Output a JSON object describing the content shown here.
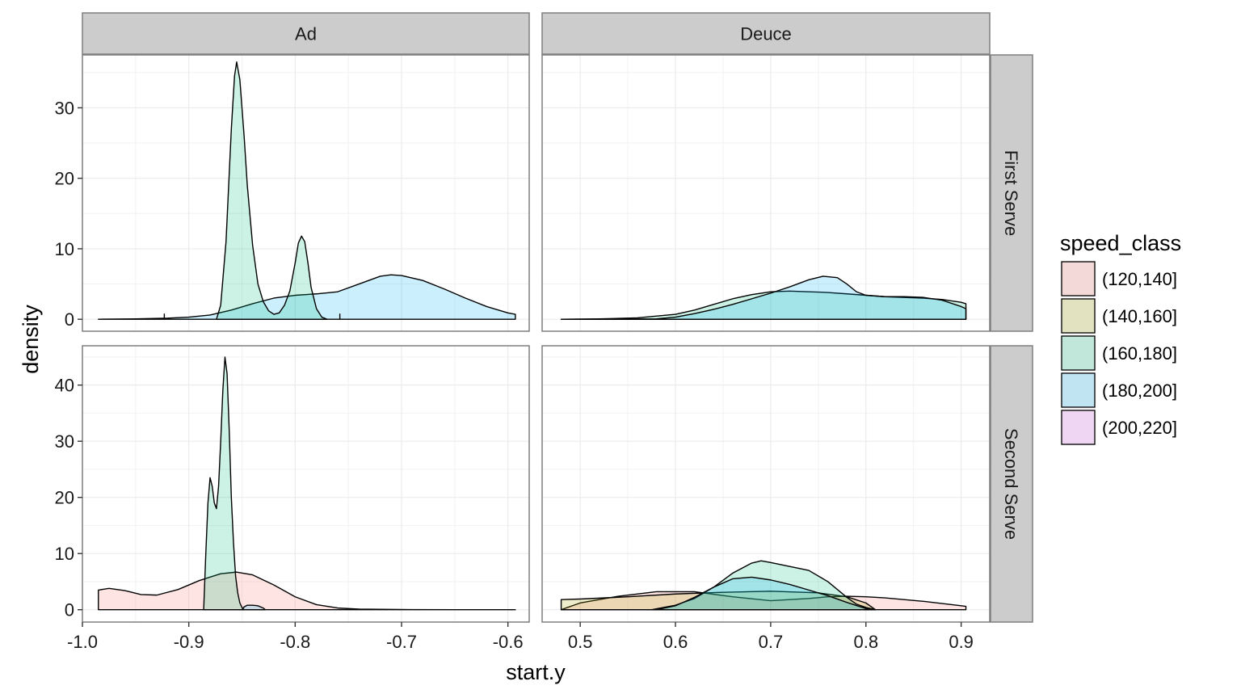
{
  "chart_data": {
    "type": "area",
    "chart_kind": "faceted density plot",
    "xlabel": "start.y",
    "ylabel": "density",
    "colors": {
      "(120,140]": "#F8766D",
      "(140,160]": "#A3A500",
      "(160,180]": "#00BF7D",
      "(180,200]": "#00B0F6",
      "(200,220]": "#E76BF3"
    },
    "fill_alpha": 0.2,
    "grid": true,
    "legend": {
      "title": "speed_class",
      "position": "right",
      "entries": [
        "(120,140]",
        "(140,160]",
        "(160,180]",
        "(180,200]",
        "(200,220]"
      ]
    },
    "col_facets": [
      "Ad",
      "Deuce"
    ],
    "row_facets": [
      "First Serve",
      "Second Serve"
    ],
    "x_scales": {
      "Ad": {
        "xlim": [
          -1.0,
          -0.58
        ],
        "ticks": [
          -1.0,
          -0.9,
          -0.8,
          -0.7,
          -0.6
        ],
        "tick_labels": [
          "-1.0",
          "-0.9",
          "-0.8",
          "-0.7",
          "-0.6"
        ]
      },
      "Deuce": {
        "xlim": [
          0.46,
          0.93
        ],
        "ticks": [
          0.5,
          0.6,
          0.7,
          0.8,
          0.9
        ],
        "tick_labels": [
          "0.5",
          "0.6",
          "0.7",
          "0.8",
          "0.9"
        ]
      }
    },
    "y_scales": {
      "First Serve": {
        "ylim": [
          -1.7,
          37.5
        ],
        "ticks": [
          0,
          10,
          20,
          30
        ],
        "tick_labels": [
          "0",
          "10",
          "20",
          "30"
        ]
      },
      "Second Serve": {
        "ylim": [
          -2.2,
          47
        ],
        "ticks": [
          0,
          10,
          20,
          30,
          40
        ],
        "tick_labels": [
          "0",
          "10",
          "20",
          "30",
          "40"
        ]
      }
    },
    "panels": [
      {
        "row": "First Serve",
        "col": "Ad",
        "series": [
          {
            "name": "(180,200]",
            "x": [
              -0.985,
              -0.95,
              -0.92,
              -0.9,
              -0.88,
              -0.86,
              -0.84,
              -0.82,
              -0.8,
              -0.78,
              -0.76,
              -0.74,
              -0.72,
              -0.71,
              -0.7,
              -0.68,
              -0.66,
              -0.64,
              -0.62,
              -0.6,
              -0.593
            ],
            "y": [
              0,
              0.05,
              0.15,
              0.3,
              0.6,
              1.3,
              2.2,
              3.0,
              3.4,
              3.6,
              3.9,
              5.0,
              6.1,
              6.3,
              6.2,
              5.5,
              4.3,
              3.0,
              1.8,
              0.9,
              0.7
            ]
          },
          {
            "name": "(160,180]",
            "x": [
              -0.874,
              -0.87,
              -0.865,
              -0.86,
              -0.857,
              -0.855,
              -0.852,
              -0.848,
              -0.845,
              -0.84,
              -0.835,
              -0.83,
              -0.825,
              -0.82,
              -0.815,
              -0.81,
              -0.805,
              -0.8,
              -0.797,
              -0.794,
              -0.791,
              -0.788,
              -0.785,
              -0.78,
              -0.775,
              -0.77
            ],
            "y": [
              0,
              2.0,
              11.0,
              27.0,
              34.5,
              36.5,
              34.0,
              26.0,
              19.0,
              10.5,
              5.0,
              2.5,
              1.2,
              0.7,
              0.9,
              2.0,
              4.0,
              8.0,
              10.8,
              11.8,
              11.0,
              8.0,
              4.5,
              1.5,
              0.3,
              0
            ]
          },
          {
            "name": "(160,180]",
            "x": [
              -0.923,
              -0.923
            ],
            "y": [
              0,
              0.8
            ]
          },
          {
            "name": "(160,180]",
            "x": [
              -0.758,
              -0.758
            ],
            "y": [
              0,
              0.8
            ]
          }
        ]
      },
      {
        "row": "First Serve",
        "col": "Deuce",
        "series": [
          {
            "name": "(160,180]",
            "x": [
              0.48,
              0.52,
              0.56,
              0.6,
              0.62,
              0.64,
              0.66,
              0.68,
              0.7,
              0.72,
              0.74,
              0.76,
              0.78,
              0.8,
              0.82,
              0.84,
              0.86,
              0.88,
              0.9,
              0.905
            ],
            "y": [
              0,
              0.05,
              0.2,
              0.7,
              1.3,
              2.1,
              2.9,
              3.5,
              3.9,
              4.0,
              3.9,
              3.8,
              3.6,
              3.4,
              3.2,
              3.1,
              3.0,
              2.8,
              2.4,
              2.2
            ]
          },
          {
            "name": "(180,200]",
            "x": [
              0.48,
              0.58,
              0.6,
              0.62,
              0.64,
              0.66,
              0.68,
              0.7,
              0.72,
              0.74,
              0.755,
              0.77,
              0.78,
              0.79,
              0.8,
              0.82,
              0.84,
              0.86,
              0.88,
              0.9,
              0.905
            ],
            "y": [
              0,
              0.05,
              0.3,
              0.8,
              1.4,
              2.1,
              2.9,
              3.7,
              4.6,
              5.6,
              6.1,
              5.9,
              5.0,
              3.9,
              3.4,
              3.2,
              3.2,
              3.1,
              2.7,
              1.8,
              1.5
            ]
          }
        ]
      },
      {
        "row": "Second Serve",
        "col": "Ad",
        "series": [
          {
            "name": "(120,140]",
            "x": [
              -0.985,
              -0.985,
              -0.975,
              -0.96,
              -0.945,
              -0.93,
              -0.91,
              -0.89,
              -0.87,
              -0.855,
              -0.84,
              -0.82,
              -0.8,
              -0.78,
              -0.76,
              -0.74,
              -0.7,
              -0.65,
              -0.593
            ],
            "y": [
              0,
              3.5,
              3.8,
              3.4,
              2.7,
              2.6,
              3.6,
              5.2,
              6.4,
              6.7,
              6.2,
              4.4,
              2.3,
              0.9,
              0.3,
              0.1,
              0.03,
              0.01,
              0
            ]
          },
          {
            "name": "(160,180]",
            "x": [
              -0.886,
              -0.884,
              -0.882,
              -0.88,
              -0.878,
              -0.876,
              -0.874,
              -0.872,
              -0.87,
              -0.868,
              -0.866,
              -0.864,
              -0.862,
              -0.86,
              -0.858,
              -0.856,
              -0.854,
              -0.852,
              -0.85,
              -0.848
            ],
            "y": [
              0,
              10,
              19,
              23.5,
              22,
              19,
              18,
              22,
              30,
              39,
              45,
              42,
              32,
              20,
              12,
              6,
              3,
              1.2,
              0.4,
              0
            ]
          },
          {
            "name": "(180,200]",
            "x": [
              -0.85,
              -0.848,
              -0.845,
              -0.84,
              -0.835,
              -0.83,
              -0.828
            ],
            "y": [
              0,
              0.5,
              0.8,
              0.8,
              0.7,
              0.3,
              0
            ]
          }
        ]
      },
      {
        "row": "Second Serve",
        "col": "Deuce",
        "series": [
          {
            "name": "(120,140]",
            "x": [
              0.48,
              0.5,
              0.54,
              0.58,
              0.62,
              0.66,
              0.7,
              0.74,
              0.76,
              0.78,
              0.8,
              0.82,
              0.86,
              0.9,
              0.905
            ],
            "y": [
              0,
              1.2,
              2.4,
              3.2,
              3.2,
              2.3,
              1.6,
              2.0,
              2.3,
              2.4,
              2.3,
              2.1,
              1.5,
              0.7,
              0.6
            ]
          },
          {
            "name": "(140,160]",
            "x": [
              0.48,
              0.5,
              0.55,
              0.6,
              0.65,
              0.7,
              0.75,
              0.78,
              0.8,
              0.81
            ],
            "y": [
              1.8,
              1.9,
              2.3,
              2.8,
              3.1,
              3.3,
              3.0,
              2.3,
              1.2,
              0
            ]
          },
          {
            "name": "(160,180]",
            "x": [
              0.575,
              0.6,
              0.62,
              0.64,
              0.66,
              0.68,
              0.69,
              0.7,
              0.72,
              0.74,
              0.76,
              0.78,
              0.79,
              0.8,
              0.81
            ],
            "y": [
              0,
              0.8,
              2.0,
              4.0,
              6.5,
              8.3,
              8.7,
              8.4,
              7.7,
              7.0,
              5.0,
              2.2,
              1.0,
              0.4,
              0
            ]
          },
          {
            "name": "(180,200]",
            "x": [
              0.58,
              0.6,
              0.62,
              0.64,
              0.66,
              0.68,
              0.7,
              0.72,
              0.74,
              0.76,
              0.78,
              0.8,
              0.805
            ],
            "y": [
              0,
              0.7,
              2.2,
              4.0,
              5.5,
              5.8,
              5.3,
              4.5,
              3.5,
              2.5,
              1.3,
              0.2,
              0
            ]
          }
        ]
      }
    ]
  }
}
